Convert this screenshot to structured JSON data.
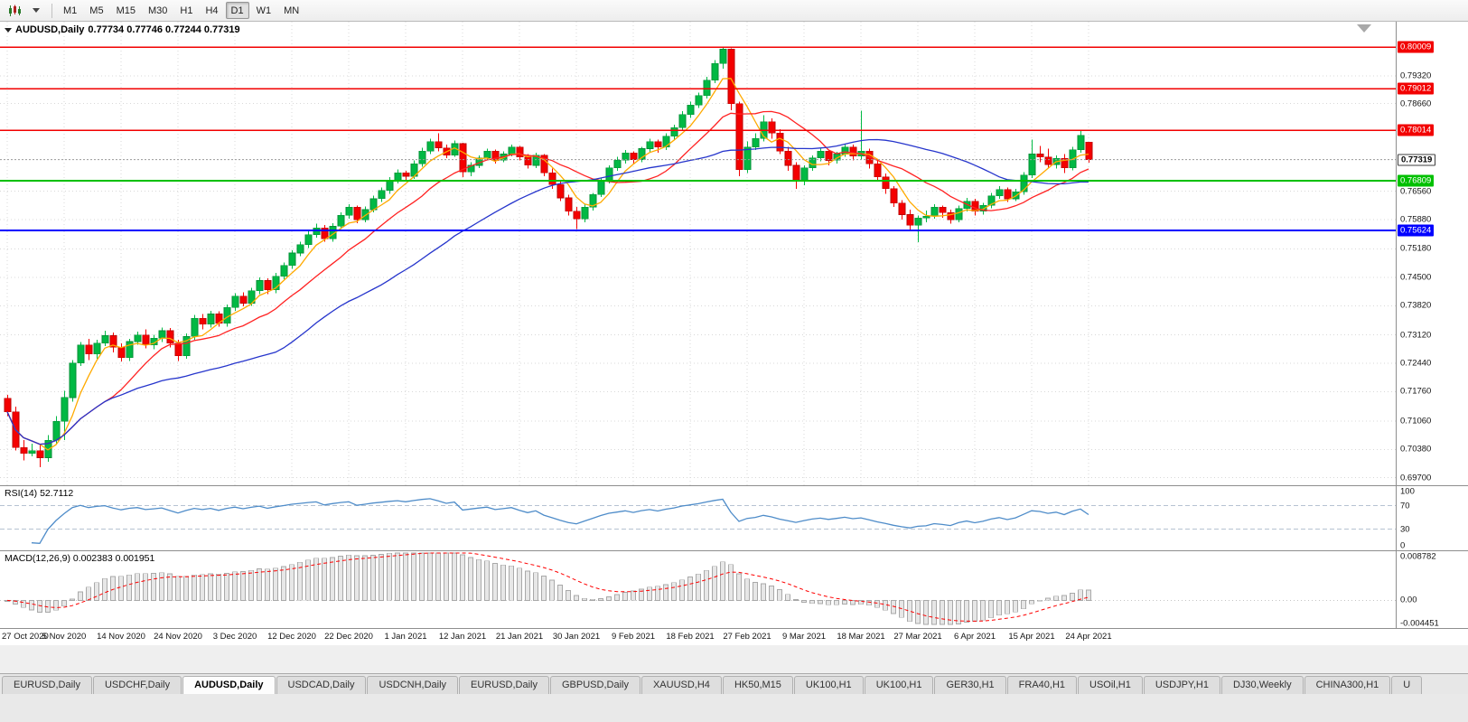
{
  "toolbar": {
    "timeframes": [
      "M1",
      "M5",
      "M15",
      "M30",
      "H1",
      "H4",
      "D1",
      "W1",
      "MN"
    ],
    "active_timeframe": "D1"
  },
  "chart": {
    "symbol_label": "AUDUSD,Daily",
    "ohlc_label": "0.77734 0.77746 0.77244 0.77319",
    "current_price": "0.77319",
    "colors": {
      "grid": "#d8d8d8",
      "bull": "#00b944",
      "bull_border": "#008f33",
      "bear": "#f40000",
      "bear_border": "#bb0000",
      "current_line": "#9a9a9a"
    },
    "hlines": [
      {
        "price": 0.80009,
        "label": "0.80009",
        "color": "#f20000",
        "width": 1.6
      },
      {
        "price": 0.79012,
        "label": "0.79012",
        "color": "#f20000",
        "width": 1.6
      },
      {
        "price": 0.78014,
        "label": "0.78014",
        "color": "#f20000",
        "width": 1.6
      },
      {
        "price": 0.76809,
        "label": "0.76809",
        "color": "#00c000",
        "width": 1.8
      },
      {
        "price": 0.75624,
        "label": "0.75624",
        "color": "#0000ff",
        "width": 2.2
      }
    ],
    "price_axis": [
      "0.79320",
      "0.78660",
      "0.76560",
      "0.75880",
      "0.75180",
      "0.74500",
      "0.73820",
      "0.73120",
      "0.72440",
      "0.71760",
      "0.71060",
      "0.70380",
      "0.69700"
    ]
  },
  "chart_data": {
    "type": "candlestick",
    "symbol": "AUDUSD",
    "timeframe": "Daily",
    "title": "AUDUSD,Daily 0.77734 0.77746 0.77244 0.77319",
    "y_domain": [
      0.6952,
      0.8062
    ],
    "candles": [
      [
        0.716,
        0.7168,
        0.7118,
        0.7128
      ],
      [
        0.7128,
        0.714,
        0.7035,
        0.7042
      ],
      [
        0.7042,
        0.706,
        0.7012,
        0.7028
      ],
      [
        0.7028,
        0.7052,
        0.7021,
        0.7035
      ],
      [
        0.7035,
        0.7048,
        0.6995,
        0.7018
      ],
      [
        0.7018,
        0.7072,
        0.7008,
        0.706
      ],
      [
        0.706,
        0.7118,
        0.7052,
        0.7105
      ],
      [
        0.7105,
        0.7178,
        0.706,
        0.7162
      ],
      [
        0.7162,
        0.7252,
        0.7152,
        0.7245
      ],
      [
        0.7245,
        0.7295,
        0.7238,
        0.7288
      ],
      [
        0.7288,
        0.7302,
        0.7252,
        0.7266
      ],
      [
        0.7266,
        0.73,
        0.7255,
        0.7292
      ],
      [
        0.7292,
        0.7322,
        0.7285,
        0.731
      ],
      [
        0.731,
        0.7318,
        0.727,
        0.7282
      ],
      [
        0.7282,
        0.7292,
        0.7248,
        0.7258
      ],
      [
        0.7258,
        0.7302,
        0.725,
        0.7296
      ],
      [
        0.7296,
        0.732,
        0.7288,
        0.7312
      ],
      [
        0.7312,
        0.7325,
        0.728,
        0.7288
      ],
      [
        0.7288,
        0.7312,
        0.7278,
        0.7304
      ],
      [
        0.7304,
        0.733,
        0.7295,
        0.7322
      ],
      [
        0.7322,
        0.7328,
        0.7282,
        0.7292
      ],
      [
        0.7292,
        0.73,
        0.725,
        0.7262
      ],
      [
        0.7262,
        0.7315,
        0.7255,
        0.7308
      ],
      [
        0.7308,
        0.736,
        0.73,
        0.7352
      ],
      [
        0.7352,
        0.7362,
        0.7325,
        0.7338
      ],
      [
        0.7338,
        0.737,
        0.733,
        0.7362
      ],
      [
        0.7362,
        0.7368,
        0.7332,
        0.734
      ],
      [
        0.734,
        0.7385,
        0.7332,
        0.7378
      ],
      [
        0.7378,
        0.7412,
        0.737,
        0.7405
      ],
      [
        0.7405,
        0.7414,
        0.738,
        0.7388
      ],
      [
        0.7388,
        0.7425,
        0.7382,
        0.7418
      ],
      [
        0.7418,
        0.745,
        0.741,
        0.7442
      ],
      [
        0.7442,
        0.7448,
        0.741,
        0.742
      ],
      [
        0.742,
        0.746,
        0.7412,
        0.7452
      ],
      [
        0.7452,
        0.7485,
        0.7445,
        0.7478
      ],
      [
        0.7478,
        0.7515,
        0.747,
        0.7508
      ],
      [
        0.7508,
        0.7535,
        0.75,
        0.7528
      ],
      [
        0.7528,
        0.756,
        0.752,
        0.7552
      ],
      [
        0.7552,
        0.7578,
        0.7545,
        0.7568
      ],
      [
        0.7568,
        0.7575,
        0.7535,
        0.7542
      ],
      [
        0.7542,
        0.758,
        0.7535,
        0.7572
      ],
      [
        0.7572,
        0.7605,
        0.7565,
        0.7598
      ],
      [
        0.7598,
        0.7625,
        0.759,
        0.7618
      ],
      [
        0.7618,
        0.7622,
        0.758,
        0.7588
      ],
      [
        0.7588,
        0.762,
        0.7582,
        0.7612
      ],
      [
        0.7612,
        0.7645,
        0.7605,
        0.7638
      ],
      [
        0.7638,
        0.7665,
        0.763,
        0.7658
      ],
      [
        0.7658,
        0.769,
        0.765,
        0.7682
      ],
      [
        0.7682,
        0.7708,
        0.7675,
        0.77
      ],
      [
        0.77,
        0.7705,
        0.7682,
        0.7692
      ],
      [
        0.7692,
        0.773,
        0.7685,
        0.7722
      ],
      [
        0.7722,
        0.776,
        0.7715,
        0.7752
      ],
      [
        0.7752,
        0.7782,
        0.7745,
        0.7775
      ],
      [
        0.7775,
        0.7795,
        0.7752,
        0.776
      ],
      [
        0.776,
        0.7768,
        0.7735,
        0.7742
      ],
      [
        0.7742,
        0.7778,
        0.7738,
        0.777
      ],
      [
        0.777,
        0.7772,
        0.769,
        0.7702
      ],
      [
        0.7702,
        0.7725,
        0.7692,
        0.7718
      ],
      [
        0.7718,
        0.7742,
        0.7712,
        0.7736
      ],
      [
        0.7736,
        0.7758,
        0.773,
        0.7752
      ],
      [
        0.7752,
        0.7756,
        0.7722,
        0.773
      ],
      [
        0.773,
        0.7752,
        0.7725,
        0.7745
      ],
      [
        0.7745,
        0.7768,
        0.774,
        0.7762
      ],
      [
        0.7762,
        0.7765,
        0.773,
        0.7738
      ],
      [
        0.7738,
        0.7745,
        0.771,
        0.7718
      ],
      [
        0.7718,
        0.7748,
        0.7712,
        0.7742
      ],
      [
        0.7742,
        0.7745,
        0.7692,
        0.77
      ],
      [
        0.77,
        0.771,
        0.7662,
        0.7672
      ],
      [
        0.7672,
        0.768,
        0.7632,
        0.764
      ],
      [
        0.764,
        0.7648,
        0.7598,
        0.7608
      ],
      [
        0.7608,
        0.7618,
        0.7565,
        0.759
      ],
      [
        0.759,
        0.7625,
        0.7582,
        0.7618
      ],
      [
        0.7618,
        0.7652,
        0.761,
        0.7648
      ],
      [
        0.7648,
        0.7688,
        0.7642,
        0.7682
      ],
      [
        0.7682,
        0.7718,
        0.7675,
        0.7712
      ],
      [
        0.7712,
        0.7738,
        0.7705,
        0.773
      ],
      [
        0.773,
        0.7755,
        0.7722,
        0.7748
      ],
      [
        0.7748,
        0.7752,
        0.7722,
        0.7732
      ],
      [
        0.7732,
        0.7762,
        0.7725,
        0.7758
      ],
      [
        0.7758,
        0.7782,
        0.775,
        0.7775
      ],
      [
        0.7775,
        0.778,
        0.7748,
        0.7762
      ],
      [
        0.7762,
        0.7795,
        0.7755,
        0.7788
      ],
      [
        0.7788,
        0.7815,
        0.778,
        0.7808
      ],
      [
        0.7808,
        0.7848,
        0.78,
        0.784
      ],
      [
        0.784,
        0.787,
        0.7832,
        0.7862
      ],
      [
        0.7862,
        0.7892,
        0.7855,
        0.7885
      ],
      [
        0.7885,
        0.793,
        0.7878,
        0.7922
      ],
      [
        0.7922,
        0.797,
        0.7915,
        0.7962
      ],
      [
        0.7962,
        0.8001,
        0.795,
        0.7996
      ],
      [
        0.7996,
        0.7998,
        0.785,
        0.7866
      ],
      [
        0.7866,
        0.787,
        0.7692,
        0.7708
      ],
      [
        0.7708,
        0.7775,
        0.77,
        0.7762
      ],
      [
        0.7762,
        0.7795,
        0.7755,
        0.7782
      ],
      [
        0.7782,
        0.7838,
        0.7775,
        0.7822
      ],
      [
        0.7822,
        0.783,
        0.7782,
        0.7795
      ],
      [
        0.7795,
        0.7805,
        0.7745,
        0.7752
      ],
      [
        0.7752,
        0.7762,
        0.7705,
        0.7718
      ],
      [
        0.7718,
        0.7725,
        0.7662,
        0.7682
      ],
      [
        0.7682,
        0.7718,
        0.767,
        0.7712
      ],
      [
        0.7712,
        0.7742,
        0.7705,
        0.7736
      ],
      [
        0.7736,
        0.7758,
        0.7728,
        0.7752
      ],
      [
        0.7752,
        0.7756,
        0.7718,
        0.773
      ],
      [
        0.773,
        0.775,
        0.7722,
        0.7745
      ],
      [
        0.7745,
        0.7768,
        0.7738,
        0.7762
      ],
      [
        0.7762,
        0.7768,
        0.773,
        0.774
      ],
      [
        0.774,
        0.7849,
        0.7732,
        0.7752
      ],
      [
        0.7752,
        0.7758,
        0.771,
        0.7722
      ],
      [
        0.7722,
        0.773,
        0.768,
        0.769
      ],
      [
        0.769,
        0.7698,
        0.765,
        0.7662
      ],
      [
        0.7662,
        0.7668,
        0.7618,
        0.7628
      ],
      [
        0.7628,
        0.7635,
        0.7588,
        0.76
      ],
      [
        0.76,
        0.7612,
        0.7562,
        0.7575
      ],
      [
        0.7575,
        0.7598,
        0.7534,
        0.7592
      ],
      [
        0.7592,
        0.761,
        0.7582,
        0.7596
      ],
      [
        0.7596,
        0.7625,
        0.759,
        0.7618
      ],
      [
        0.7618,
        0.7622,
        0.7592,
        0.7605
      ],
      [
        0.7605,
        0.7612,
        0.7578,
        0.7588
      ],
      [
        0.7588,
        0.7622,
        0.7582,
        0.7615
      ],
      [
        0.7615,
        0.764,
        0.7608,
        0.7632
      ],
      [
        0.7632,
        0.7638,
        0.7598,
        0.7608
      ],
      [
        0.7608,
        0.7628,
        0.76,
        0.7622
      ],
      [
        0.7622,
        0.7652,
        0.7615,
        0.7645
      ],
      [
        0.7645,
        0.7668,
        0.7638,
        0.766
      ],
      [
        0.766,
        0.7665,
        0.763,
        0.7638
      ],
      [
        0.7638,
        0.7662,
        0.7632,
        0.7655
      ],
      [
        0.7655,
        0.7702,
        0.7648,
        0.7695
      ],
      [
        0.7695,
        0.778,
        0.7688,
        0.7745
      ],
      [
        0.7745,
        0.7765,
        0.7725,
        0.7738
      ],
      [
        0.7738,
        0.7758,
        0.7712,
        0.772
      ],
      [
        0.772,
        0.7742,
        0.771,
        0.7735
      ],
      [
        0.7735,
        0.7745,
        0.77,
        0.7712
      ],
      [
        0.7712,
        0.7762,
        0.7706,
        0.7755
      ],
      [
        0.7755,
        0.7802,
        0.7748,
        0.779
      ],
      [
        0.77734,
        0.77746,
        0.77244,
        0.77319
      ]
    ],
    "date_labels": [
      {
        "label": "27 Oct 2020",
        "index": 0
      },
      {
        "label": "5 Nov 2020",
        "index": 7
      },
      {
        "label": "14 Nov 2020",
        "index": 14
      },
      {
        "label": "24 Nov 2020",
        "index": 21
      },
      {
        "label": "3 Dec 2020",
        "index": 28
      },
      {
        "label": "12 Dec 2020",
        "index": 35
      },
      {
        "label": "22 Dec 2020",
        "index": 42
      },
      {
        "label": "1 Jan 2021",
        "index": 49
      },
      {
        "label": "12 Jan 2021",
        "index": 56
      },
      {
        "label": "21 Jan 2021",
        "index": 63
      },
      {
        "label": "30 Jan 2021",
        "index": 70
      },
      {
        "label": "9 Feb 2021",
        "index": 77
      },
      {
        "label": "18 Feb 2021",
        "index": 84
      },
      {
        "label": "27 Feb 2021",
        "index": 91
      },
      {
        "label": "9 Mar 2021",
        "index": 98
      },
      {
        "label": "18 Mar 2021",
        "index": 105
      },
      {
        "label": "27 Mar 2021",
        "index": 112
      },
      {
        "label": "6 Apr 2021",
        "index": 119
      },
      {
        "label": "15 Apr 2021",
        "index": 126
      },
      {
        "label": "24 Apr 2021",
        "index": 133
      }
    ],
    "moving_averages": [
      {
        "period": 5,
        "color": "#ffaa00"
      },
      {
        "period": 13,
        "color": "#ff2222"
      },
      {
        "period": 34,
        "color": "#2635cc"
      }
    ],
    "rsi": {
      "period": 14,
      "last_value": 52.7112,
      "color": "#4e8cc9",
      "levels": [
        70,
        30
      ],
      "range": [
        0,
        100
      ]
    },
    "macd": {
      "fast": 12,
      "slow": 26,
      "signal_period": 9,
      "last_value": 0.002383,
      "last_signal": 0.001951,
      "range": [
        -0.004451,
        0.008782
      ]
    }
  },
  "rsi_panel": {
    "label": "RSI(14) 52.7112",
    "axis_labels": [
      "100",
      "70",
      "30",
      "0"
    ],
    "axis_values": [
      100,
      70,
      30,
      0
    ]
  },
  "macd_panel": {
    "label": "MACD(12,26,9) 0.002383 0.001951",
    "axis_labels": [
      "0.008782",
      "0.00",
      "-0.004451"
    ],
    "axis_values": [
      0.008782,
      0,
      -0.004451
    ]
  },
  "tabs": {
    "items": [
      "EURUSD,Daily",
      "USDCHF,Daily",
      "AUDUSD,Daily",
      "USDCAD,Daily",
      "USDCNH,Daily",
      "EURUSD,Daily",
      "GBPUSD,Daily",
      "XAUUSD,H4",
      "HK50,M15",
      "UK100,H1",
      "UK100,H1",
      "GER30,H1",
      "FRA40,H1",
      "USOil,H1",
      "USDJPY,H1",
      "DJ30,Weekly",
      "CHINA300,H1",
      "U"
    ],
    "active_index": 2
  }
}
